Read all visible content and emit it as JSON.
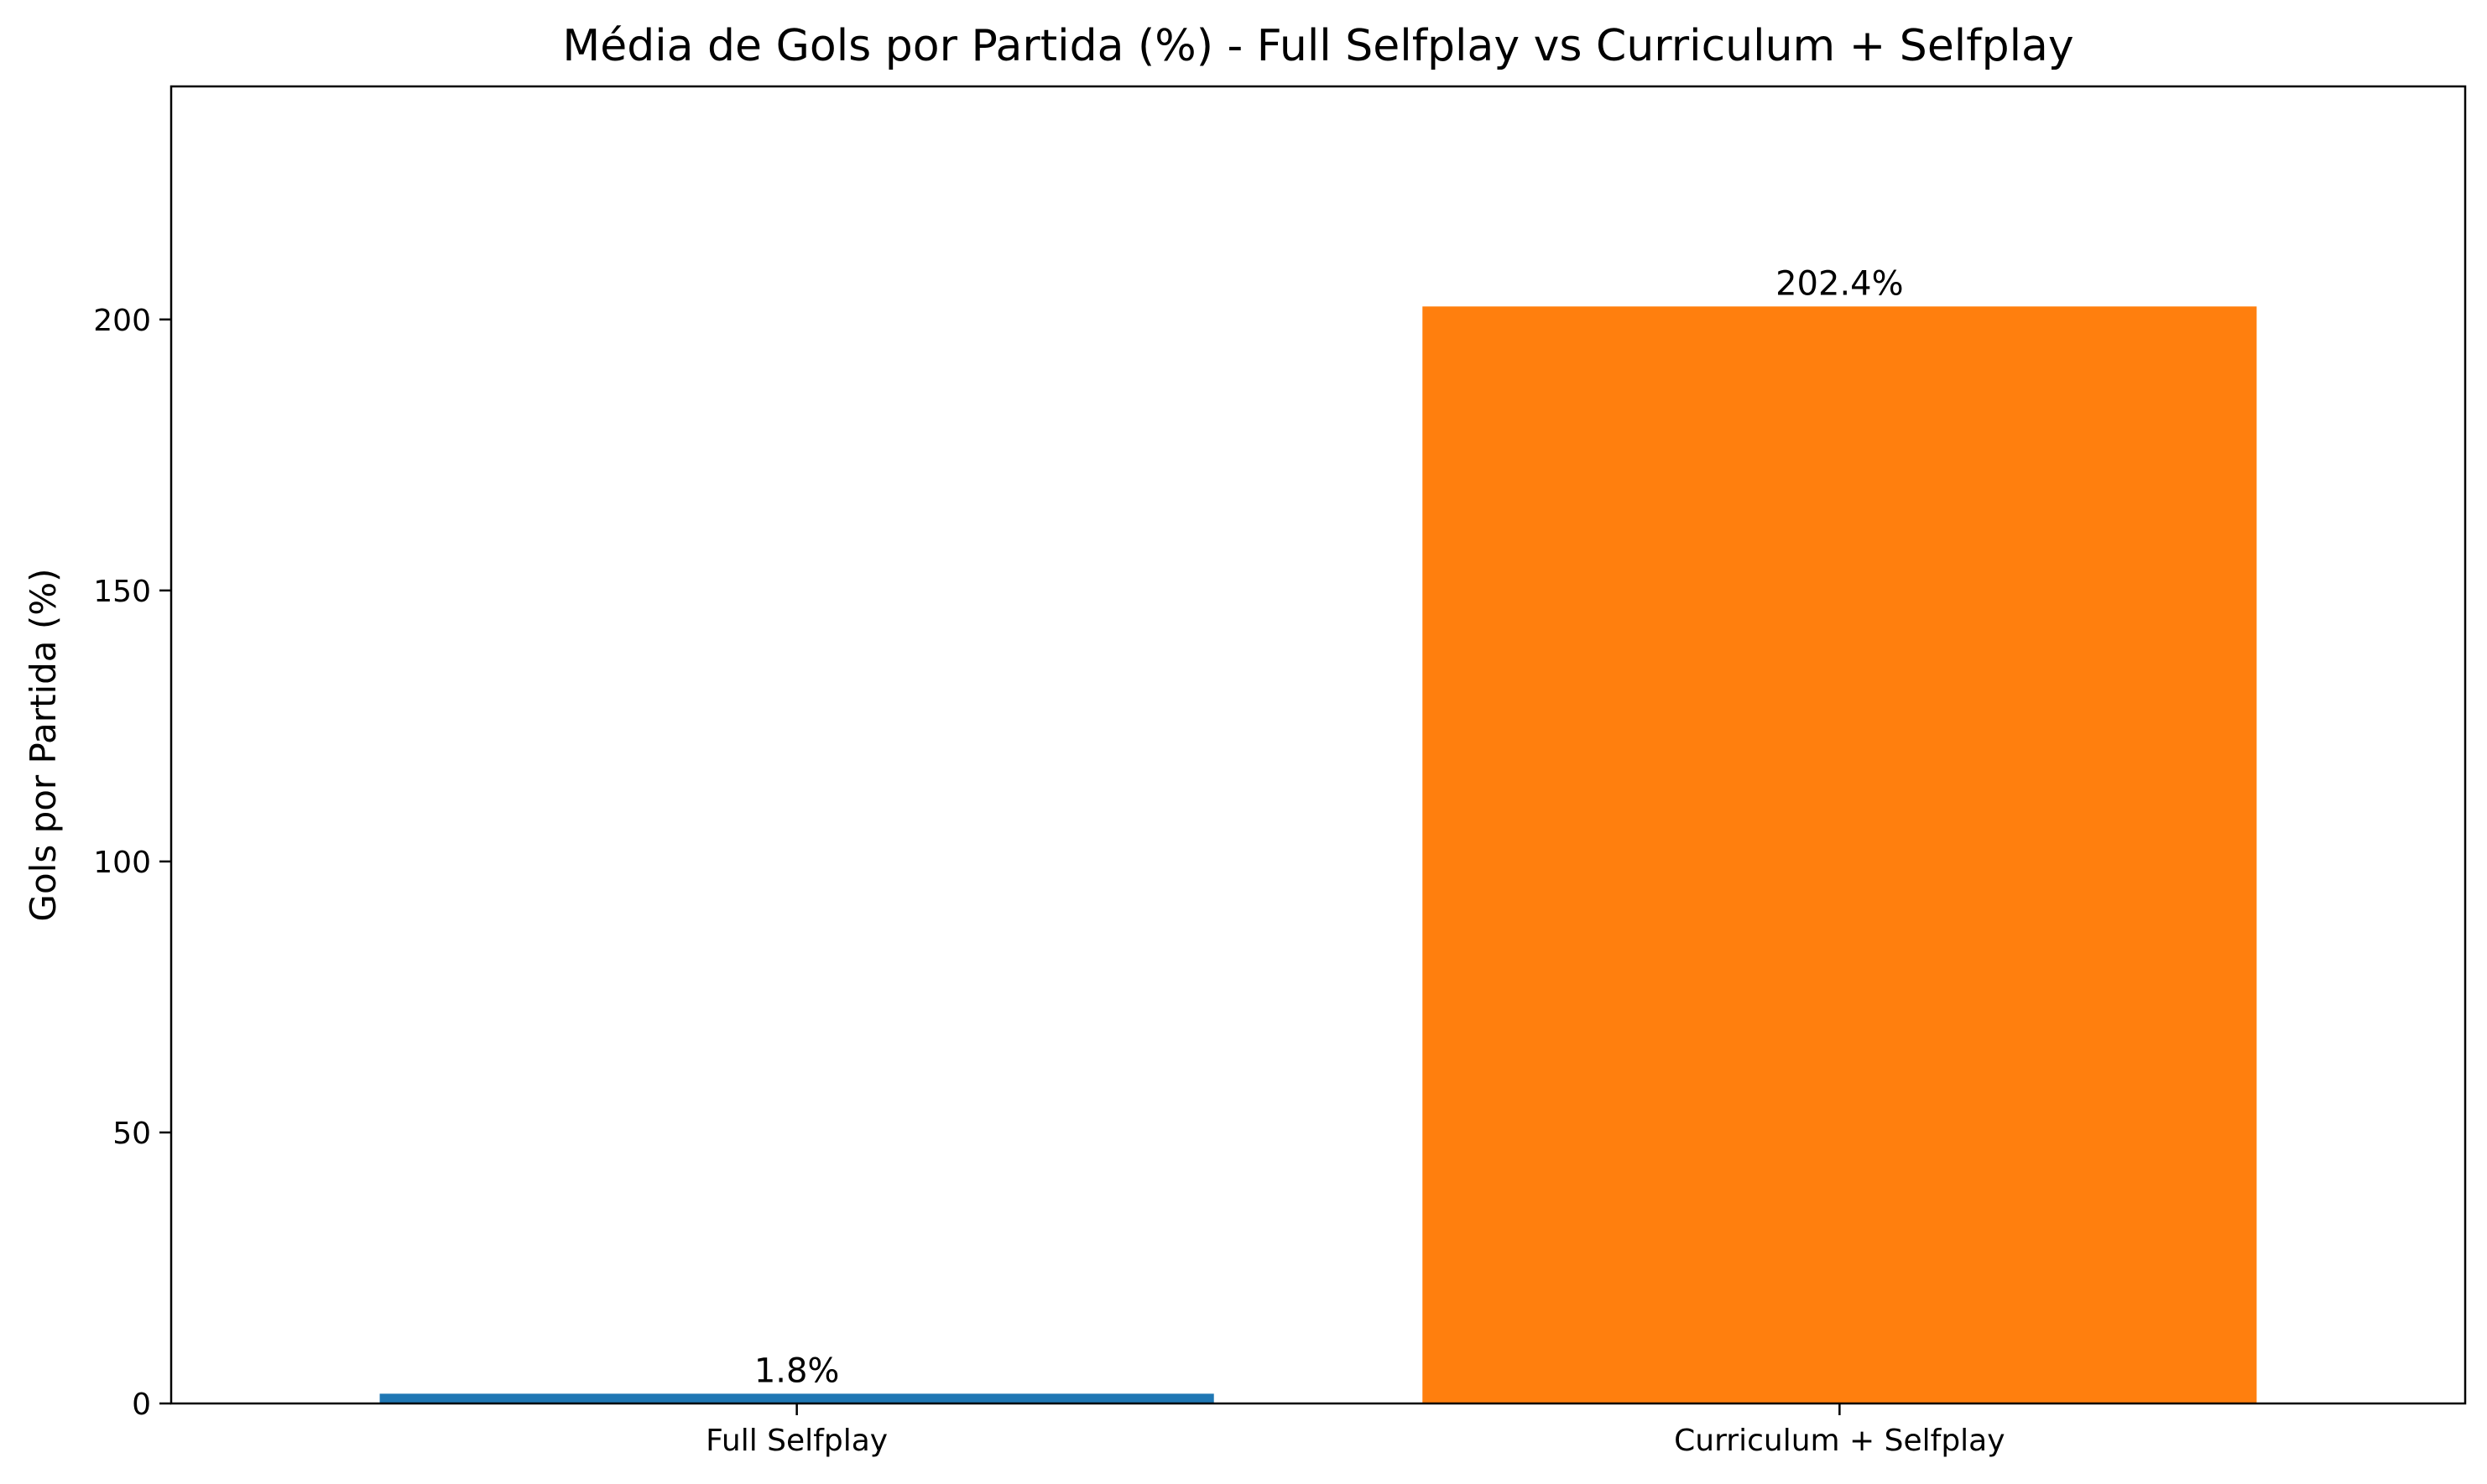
{
  "chart_data": {
    "type": "bar",
    "title": "Média de Gols por Partida (%) - Full Selfplay vs Curriculum + Selfplay",
    "xlabel": "",
    "ylabel": "Gols por Partida (%)",
    "categories": [
      "Full Selfplay",
      "Curriculum + Selfplay"
    ],
    "values": [
      1.8,
      202.4
    ],
    "value_labels": [
      "1.8%",
      "202.4%"
    ],
    "colors": [
      "#1f77b4",
      "#ff7f0e"
    ],
    "ylim": [
      0,
      243
    ],
    "yticks": [
      0,
      50,
      100,
      150,
      200
    ],
    "ytick_labels": [
      "0",
      "50",
      "100",
      "150",
      "200"
    ],
    "grid": false,
    "legend": "none"
  }
}
